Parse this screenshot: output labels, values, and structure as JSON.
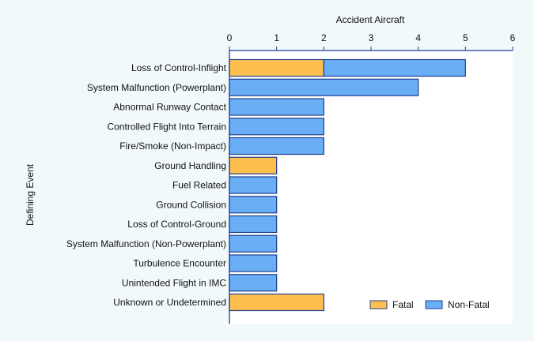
{
  "chart_data": {
    "type": "bar",
    "orientation": "horizontal",
    "stacked": true,
    "xlabel": "Accident Aircraft",
    "ylabel": "Defining Event",
    "xlim": [
      0,
      6
    ],
    "x_ticks": [
      "0",
      "1",
      "2",
      "3",
      "4",
      "5",
      "6"
    ],
    "x_axis_position": "top",
    "grid": false,
    "legend_placement": "bottom-right",
    "categories": [
      "Loss of Control-Inflight",
      "System Malfunction (Powerplant)",
      "Abnormal Runway Contact",
      "Controlled Flight Into Terrain",
      "Fire/Smoke (Non-Impact)",
      "Ground Handling",
      "Fuel Related",
      "Ground Collision",
      "Loss of Control-Ground",
      "System Malfunction (Non-Powerplant)",
      "Turbulence Encounter",
      "Unintended Flight in IMC",
      "Unknown or Undetermined"
    ],
    "series": [
      {
        "name": "Fatal",
        "color": "#ffbf4f",
        "values": [
          2,
          0,
          0,
          0,
          0,
          1,
          0,
          0,
          0,
          0,
          0,
          0,
          2
        ]
      },
      {
        "name": "Non-Fatal",
        "color": "#6aaef5",
        "values": [
          3,
          4,
          2,
          2,
          2,
          0,
          1,
          1,
          1,
          1,
          1,
          1,
          0
        ]
      }
    ]
  }
}
